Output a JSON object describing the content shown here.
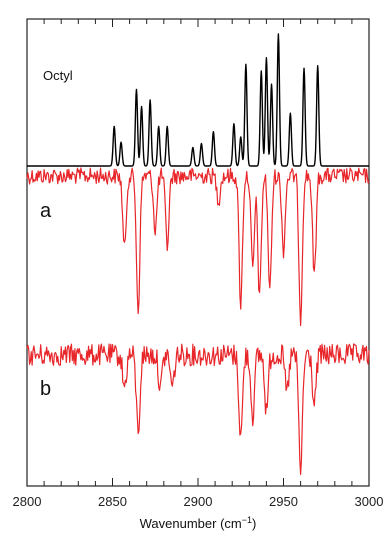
{
  "chart_data": {
    "type": "line",
    "xlabel": "Wavenumber (cm",
    "xlabel_sup": "−1",
    "xlabel_suffix": ")",
    "xlim": [
      2800,
      3000
    ],
    "x_ticks": [
      "2800",
      "2850",
      "2900",
      "2950",
      "3000"
    ],
    "y_ticks_shown": false,
    "grid": false,
    "series": [
      {
        "name": "Octyl",
        "color": "#000000",
        "kind": "stick-spectrum",
        "baseline": 0,
        "peaks": [
          {
            "x": 2851,
            "h": 0.3
          },
          {
            "x": 2855,
            "h": 0.18
          },
          {
            "x": 2864,
            "h": 0.58
          },
          {
            "x": 2867,
            "h": 0.45
          },
          {
            "x": 2872,
            "h": 0.5
          },
          {
            "x": 2877,
            "h": 0.3
          },
          {
            "x": 2882,
            "h": 0.3
          },
          {
            "x": 2897,
            "h": 0.14
          },
          {
            "x": 2902,
            "h": 0.17
          },
          {
            "x": 2909,
            "h": 0.26
          },
          {
            "x": 2921,
            "h": 0.32
          },
          {
            "x": 2925,
            "h": 0.22
          },
          {
            "x": 2928,
            "h": 0.77
          },
          {
            "x": 2937,
            "h": 0.72
          },
          {
            "x": 2940,
            "h": 0.82
          },
          {
            "x": 2943,
            "h": 0.62
          },
          {
            "x": 2947,
            "h": 1.0
          },
          {
            "x": 2954,
            "h": 0.4
          },
          {
            "x": 2962,
            "h": 0.74
          },
          {
            "x": 2970,
            "h": 0.76
          }
        ]
      },
      {
        "name": "a",
        "color": "#e8262a",
        "kind": "noisy-dips",
        "baseline": 0,
        "noise": 0.06,
        "dips": [
          {
            "x": 2857,
            "d": 0.55
          },
          {
            "x": 2865,
            "d": 1.0
          },
          {
            "x": 2875,
            "d": 0.4
          },
          {
            "x": 2882,
            "d": 0.52
          },
          {
            "x": 2912,
            "d": 0.18
          },
          {
            "x": 2925,
            "d": 0.95
          },
          {
            "x": 2932,
            "d": 0.7
          },
          {
            "x": 2936,
            "d": 0.9
          },
          {
            "x": 2942,
            "d": 0.85
          },
          {
            "x": 2950,
            "d": 0.55
          },
          {
            "x": 2960,
            "d": 1.05
          },
          {
            "x": 2968,
            "d": 0.75
          }
        ]
      },
      {
        "name": "b",
        "color": "#e8262a",
        "kind": "noisy-dips",
        "baseline": 0,
        "noise": 0.1,
        "dips": [
          {
            "x": 2857,
            "d": 0.3
          },
          {
            "x": 2865,
            "d": 0.7
          },
          {
            "x": 2878,
            "d": 0.3
          },
          {
            "x": 2885,
            "d": 0.3
          },
          {
            "x": 2925,
            "d": 0.75
          },
          {
            "x": 2932,
            "d": 0.55
          },
          {
            "x": 2940,
            "d": 0.5
          },
          {
            "x": 2952,
            "d": 0.35
          },
          {
            "x": 2960,
            "d": 1.05
          },
          {
            "x": 2968,
            "d": 0.45
          }
        ]
      }
    ]
  },
  "labels": {
    "octyl": "Octyl",
    "a": "a",
    "b": "b"
  }
}
